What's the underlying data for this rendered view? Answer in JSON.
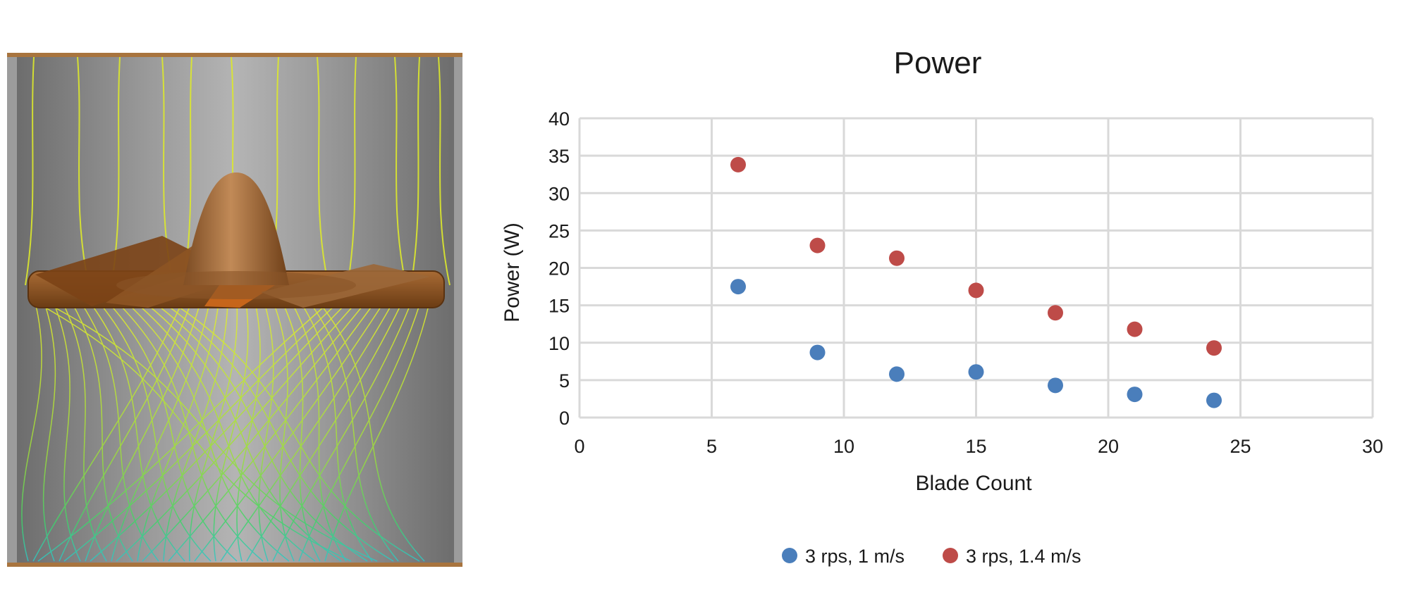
{
  "figure": {
    "left_image": "turbine-flow-simulation"
  },
  "chart_data": {
    "type": "scatter",
    "title": "Power",
    "xlabel": "Blade Count",
    "ylabel": "Power (W)",
    "xlim": [
      0,
      30
    ],
    "ylim": [
      0,
      40
    ],
    "xticks": [
      0,
      5,
      10,
      15,
      20,
      25,
      30
    ],
    "yticks": [
      0,
      5,
      10,
      15,
      20,
      25,
      30,
      35,
      40
    ],
    "grid": true,
    "legend_position": "bottom",
    "series": [
      {
        "name": "3 rps, 1 m/s",
        "color": "#4a7ebb",
        "x": [
          6,
          9,
          12,
          15,
          18,
          21,
          24
        ],
        "y": [
          17.5,
          8.7,
          5.8,
          6.1,
          4.3,
          3.1,
          2.3
        ]
      },
      {
        "name": "3 rps, 1.4 m/s",
        "color": "#be4b48",
        "x": [
          6,
          9,
          12,
          15,
          18,
          21,
          24
        ],
        "y": [
          33.8,
          23.0,
          21.3,
          17.0,
          14.0,
          11.8,
          9.3
        ]
      }
    ]
  }
}
